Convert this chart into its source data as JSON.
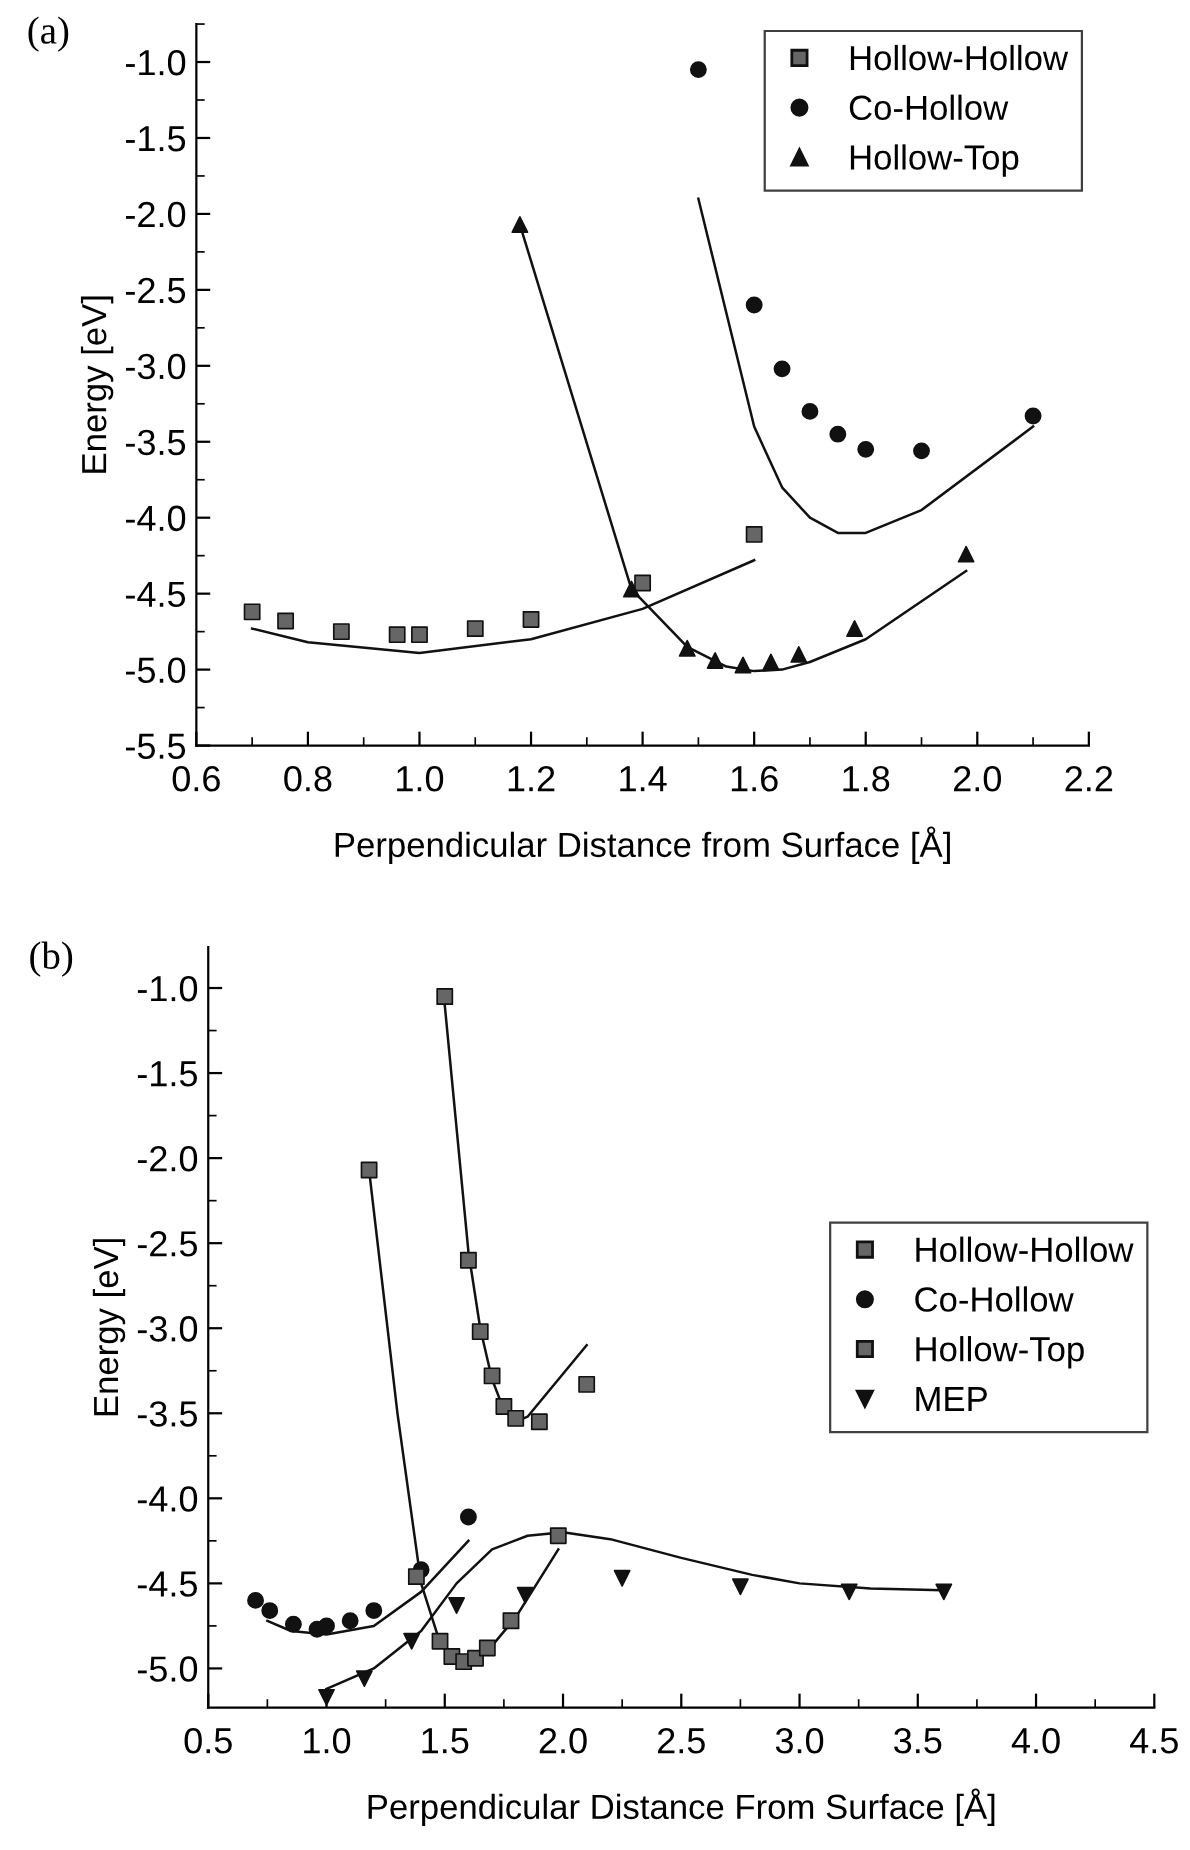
{
  "chart_data": [
    {
      "type": "scatter",
      "title": "(a)",
      "xlabel": "Perpendicular Distance from Surface [Å]",
      "ylabel": "Energy [eV]",
      "xlim": [
        0.6,
        2.2
      ],
      "xticks": [
        0.6,
        0.8,
        {
          "value": 1.0,
          "label": "1.0"
        },
        1.2,
        1.4,
        1.6,
        1.8,
        {
          "value": 2.0,
          "label": "2.0"
        },
        2.2
      ],
      "ylim": [
        -5.5,
        -0.75
      ],
      "yticks": [
        {
          "value": -5.5,
          "label": "-5.5"
        },
        {
          "value": -5.0,
          "label": "-5.0"
        },
        {
          "value": -4.5,
          "label": "-4.5"
        },
        {
          "value": -4.0,
          "label": "-4.0"
        },
        {
          "value": -3.5,
          "label": "-3.5"
        },
        {
          "value": -3.0,
          "label": "-3.0"
        },
        {
          "value": -2.5,
          "label": "-2.5"
        },
        {
          "value": -2.0,
          "label": "-2.0"
        },
        {
          "value": -1.5,
          "label": "-1.5"
        },
        {
          "value": -1.0,
          "label": "-1.0"
        }
      ],
      "grid": false,
      "legend": "top right",
      "series": [
        {
          "name": "Hollow-Hollow",
          "marker": "square",
          "color": "#666666",
          "x": [
            0.7,
            0.76,
            0.86,
            0.96,
            1.0,
            1.1,
            1.2,
            1.4,
            1.6
          ],
          "values": [
            -4.62,
            -4.68,
            -4.75,
            -4.77,
            -4.77,
            -4.73,
            -4.67,
            -4.43,
            -4.11
          ]
        },
        {
          "name": "Co-Hollow",
          "marker": "circle",
          "color": "#111111",
          "x": [
            1.5,
            1.6,
            1.65,
            1.7,
            1.75,
            1.8,
            1.9,
            2.1
          ],
          "values": [
            -1.05,
            -2.6,
            -3.02,
            -3.3,
            -3.45,
            -3.55,
            -3.56,
            -3.33
          ]
        },
        {
          "name": "Hollow-Top",
          "marker": "triangle",
          "color": "#111111",
          "x": [
            1.18,
            1.38,
            1.48,
            1.53,
            1.58,
            1.63,
            1.68,
            1.78,
            1.98
          ],
          "values": [
            -2.07,
            -4.47,
            -4.86,
            -4.94,
            -4.97,
            -4.95,
            -4.9,
            -4.73,
            -4.24
          ]
        },
        {
          "type": "line",
          "color": "#111111",
          "x": [
            0.7,
            0.8,
            1.0,
            1.2,
            1.4,
            1.6
          ],
          "values": [
            -4.73,
            -4.82,
            -4.89,
            -4.8,
            -4.6,
            -4.28
          ]
        },
        {
          "type": "line",
          "color": "#111111",
          "x": [
            1.5,
            1.6,
            1.65,
            1.7,
            1.75,
            1.8,
            1.9,
            2.1
          ],
          "values": [
            -1.9,
            -3.4,
            -3.8,
            -4.0,
            -4.1,
            -4.1,
            -3.95,
            -3.4
          ]
        },
        {
          "type": "line",
          "color": "#111111",
          "x": [
            1.18,
            1.38,
            1.48,
            1.55,
            1.6,
            1.65,
            1.7,
            1.8,
            1.98
          ],
          "values": [
            -2.07,
            -4.47,
            -4.85,
            -4.98,
            -5.01,
            -5.0,
            -4.95,
            -4.8,
            -4.35
          ]
        }
      ]
    },
    {
      "type": "scatter",
      "title": "(b)",
      "xlabel": "Perpendicular Distance From Surface [Å]",
      "ylabel": "Energy [eV]",
      "xlim": [
        0.5,
        4.5
      ],
      "xticks": [
        0.5,
        {
          "value": 1.0,
          "label": "1.0"
        },
        1.5,
        {
          "value": 2.0,
          "label": "2.0"
        },
        2.5,
        {
          "value": 3.0,
          "label": "3.0"
        },
        3.5,
        {
          "value": 4.0,
          "label": "4.0"
        },
        4.5
      ],
      "ylim": [
        -5.23,
        -0.76
      ],
      "yticks": [
        {
          "value": -5.0,
          "label": "-5.0"
        },
        {
          "value": -4.5,
          "label": "-4.5"
        },
        {
          "value": -4.0,
          "label": "-4.0"
        },
        {
          "value": -3.5,
          "label": "-3.5"
        },
        {
          "value": -3.0,
          "label": "-3.0"
        },
        {
          "value": -2.5,
          "label": "-2.5"
        },
        {
          "value": -2.0,
          "label": "-2.0"
        },
        {
          "value": -1.5,
          "label": "-1.5"
        },
        {
          "value": -1.0,
          "label": "-1.0"
        }
      ],
      "grid": false,
      "legend": "right",
      "series": [
        {
          "name": "Hollow-Hollow",
          "marker": "square",
          "color": "#666666",
          "x": [
            1.5,
            1.6,
            1.65,
            1.7,
            1.75,
            1.8,
            1.9,
            2.1
          ],
          "values": [
            -1.05,
            -2.6,
            -3.02,
            -3.28,
            -3.46,
            -3.53,
            -3.55,
            -3.33
          ]
        },
        {
          "name": "Co-Hollow",
          "marker": "circle",
          "color": "#111111",
          "x": [
            0.7,
            0.76,
            0.86,
            0.96,
            1.0,
            1.1,
            1.2,
            1.4,
            1.6
          ],
          "values": [
            -4.6,
            -4.66,
            -4.74,
            -4.77,
            -4.75,
            -4.72,
            -4.66,
            -4.42,
            -4.11
          ]
        },
        {
          "name": "Hollow-Top",
          "marker": "square",
          "color": "#666666",
          "x": [
            1.18,
            1.38,
            1.48,
            1.53,
            1.58,
            1.63,
            1.68,
            1.78,
            1.98
          ],
          "values": [
            -2.07,
            -4.46,
            -4.84,
            -4.93,
            -4.96,
            -4.94,
            -4.88,
            -4.72,
            -4.22
          ]
        },
        {
          "name": "MEP",
          "marker": "triangle_down",
          "color": "#111111",
          "x": [
            1.0,
            1.16,
            1.36,
            1.55,
            1.84,
            2.25,
            2.75,
            3.21,
            3.61
          ],
          "values": [
            -5.17,
            -5.06,
            -4.84,
            -4.63,
            -4.57,
            -4.47,
            -4.52,
            -4.55,
            -4.55
          ]
        },
        {
          "type": "line",
          "color": "#111111",
          "x": [
            1.5,
            1.6,
            1.65,
            1.7,
            1.75,
            1.8,
            1.85,
            2.1
          ],
          "values": [
            -1.1,
            -2.55,
            -3.0,
            -3.3,
            -3.48,
            -3.55,
            -3.52,
            -3.1
          ]
        },
        {
          "type": "line",
          "color": "#111111",
          "x": [
            0.75,
            0.85,
            1.0,
            1.2,
            1.4,
            1.6
          ],
          "values": [
            -4.72,
            -4.78,
            -4.8,
            -4.75,
            -4.55,
            -4.25
          ]
        },
        {
          "type": "line",
          "color": "#111111",
          "x": [
            1.18,
            1.3,
            1.4,
            1.48,
            1.58,
            1.68,
            1.8,
            1.98
          ],
          "values": [
            -2.07,
            -3.5,
            -4.5,
            -4.85,
            -4.97,
            -4.9,
            -4.7,
            -4.3
          ]
        },
        {
          "type": "line",
          "color": "#111111",
          "x": [
            1.0,
            1.2,
            1.4,
            1.55,
            1.7,
            1.85,
            2.0,
            2.2,
            2.5,
            2.8,
            3.0,
            3.3,
            3.6
          ],
          "values": [
            -5.12,
            -5.0,
            -4.78,
            -4.5,
            -4.3,
            -4.22,
            -4.2,
            -4.24,
            -4.35,
            -4.45,
            -4.5,
            -4.53,
            -4.54
          ]
        }
      ]
    }
  ]
}
